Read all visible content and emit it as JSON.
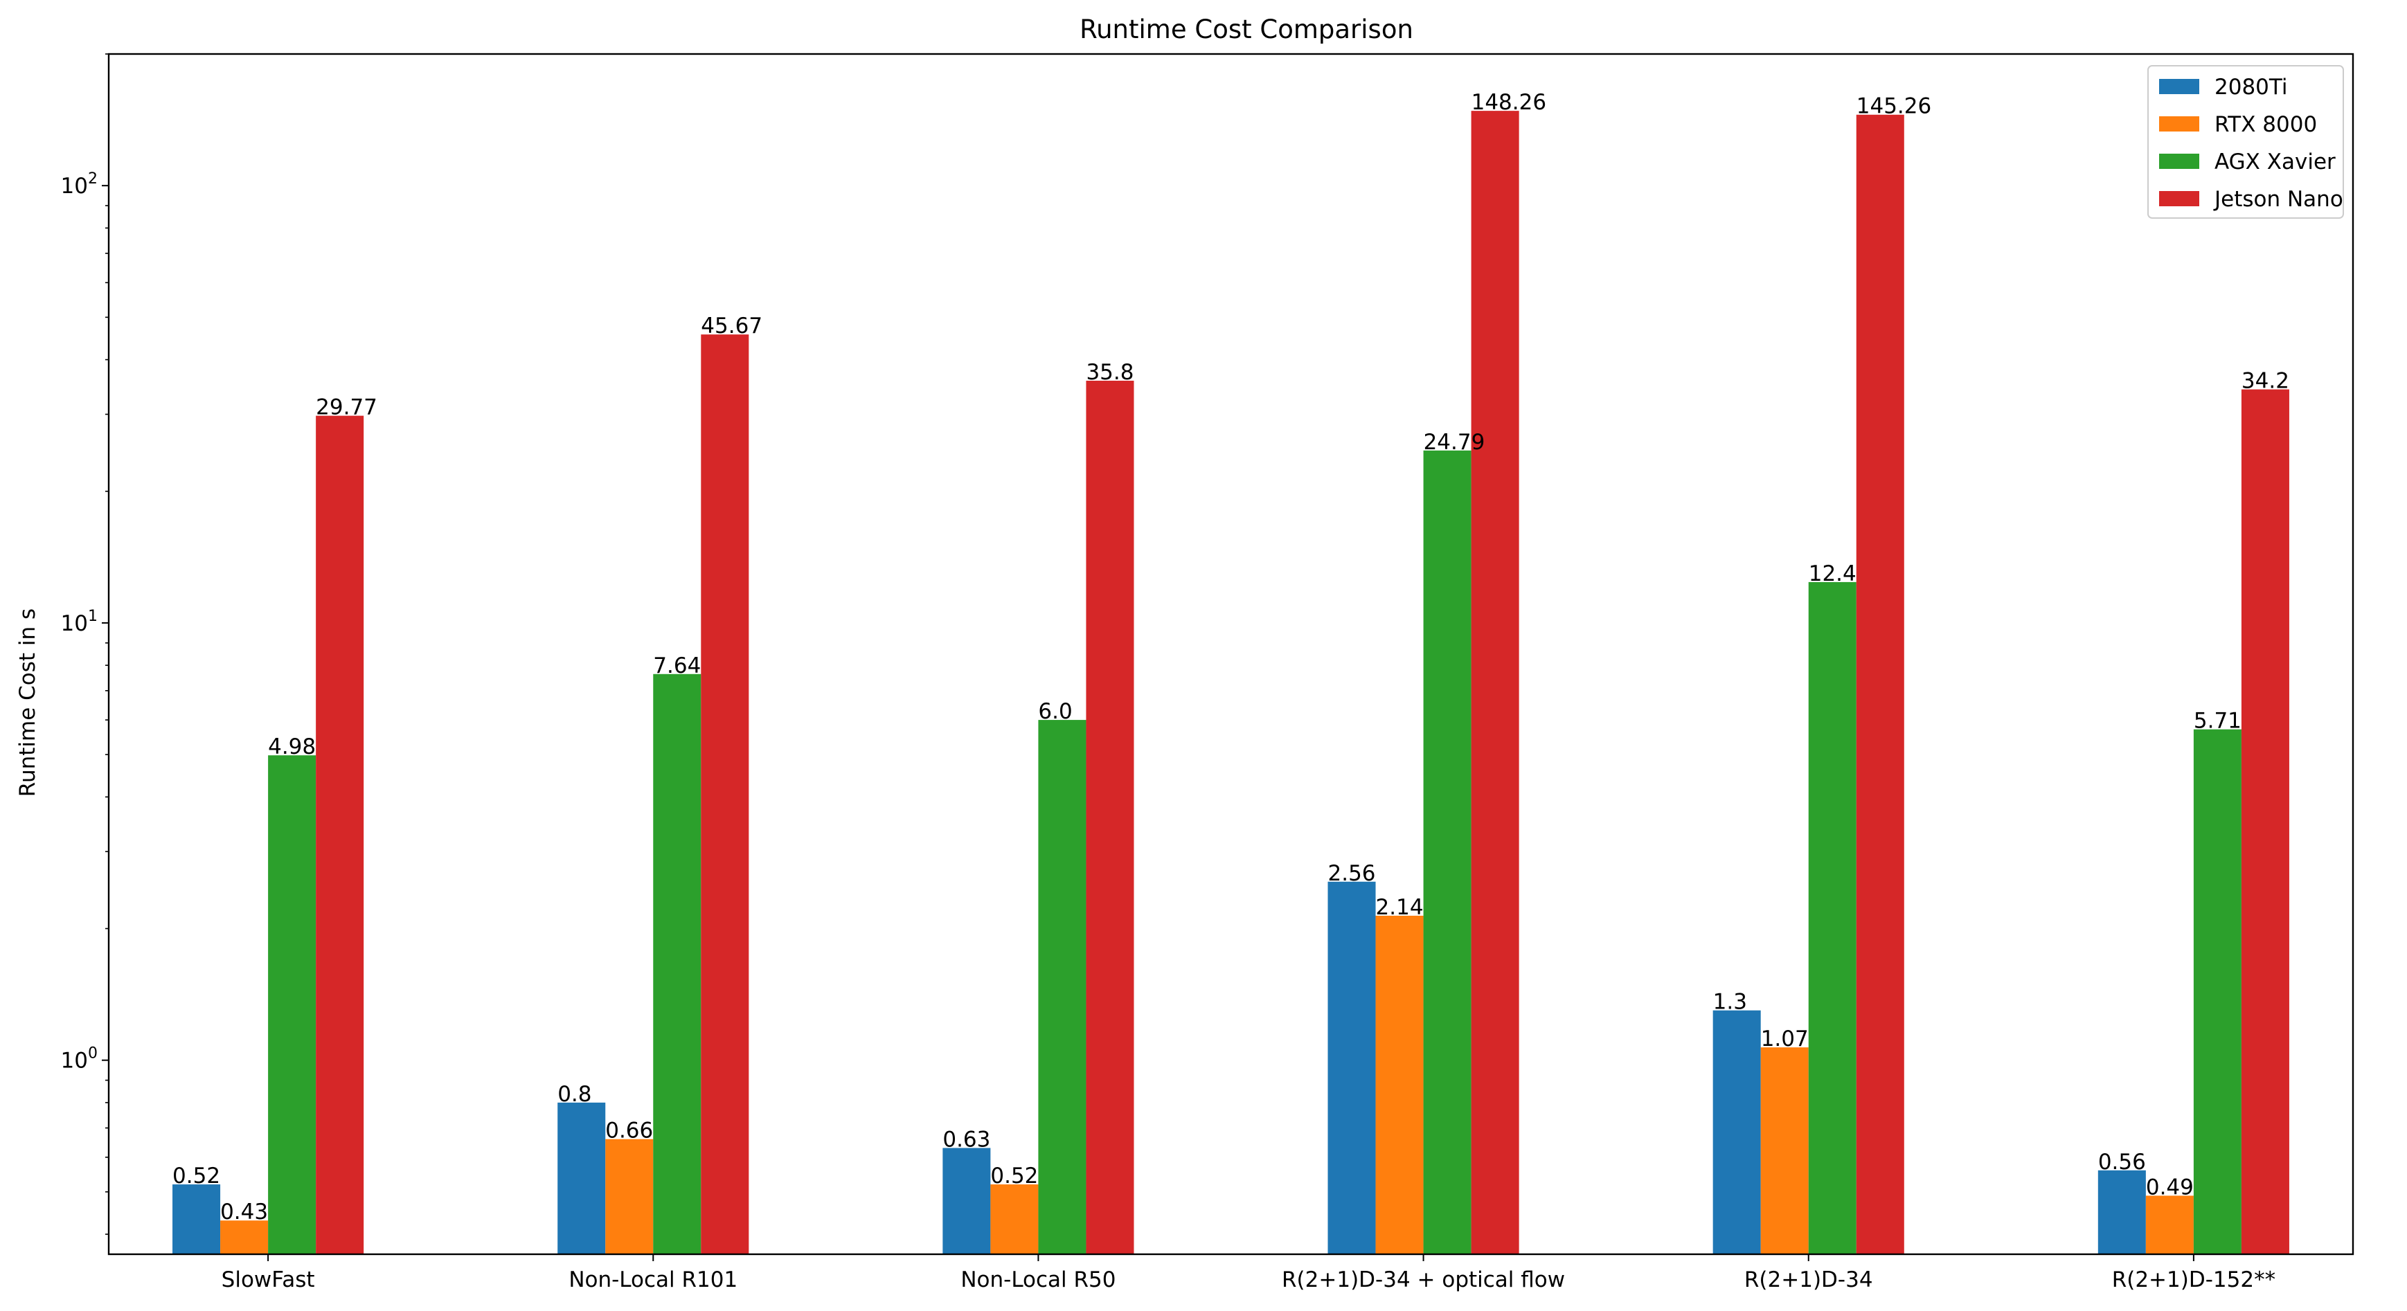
{
  "chart_data": {
    "type": "bar",
    "title": "Runtime Cost Comparison",
    "xlabel": "",
    "ylabel": "Runtime Cost in s",
    "yscale": "log",
    "ylim": [
      0.36,
      200
    ],
    "yticks": [
      {
        "value": 1,
        "base": "10",
        "exp": "0"
      },
      {
        "value": 10,
        "base": "10",
        "exp": "1"
      },
      {
        "value": 100,
        "base": "10",
        "exp": "2"
      }
    ],
    "grid": false,
    "legend_position": "top-right",
    "categories": [
      "SlowFast",
      "Non-Local R101",
      "Non-Local R50",
      "R(2+1)D-34 + optical flow",
      "R(2+1)D-34",
      "R(2+1)D-152**"
    ],
    "series": [
      {
        "name": "2080Ti",
        "color": "#1f77b4",
        "values": [
          0.52,
          0.8,
          0.63,
          2.56,
          1.3,
          0.56
        ],
        "labels": [
          "0.52",
          "0.8",
          "0.63",
          "2.56",
          "1.3",
          "0.56"
        ]
      },
      {
        "name": "RTX 8000",
        "color": "#ff7f0e",
        "values": [
          0.43,
          0.66,
          0.52,
          2.14,
          1.07,
          0.49
        ],
        "labels": [
          "0.43",
          "0.66",
          "0.52",
          "2.14",
          "1.07",
          "0.49"
        ]
      },
      {
        "name": "AGX Xavier",
        "color": "#2ca02c",
        "values": [
          4.98,
          7.64,
          6.0,
          24.79,
          12.4,
          5.71
        ],
        "labels": [
          "4.98",
          "7.64",
          "6.0",
          "24.79",
          "12.4",
          "5.71"
        ]
      },
      {
        "name": "Jetson Nano",
        "color": "#d62728",
        "values": [
          29.77,
          45.67,
          35.8,
          148.26,
          145.26,
          34.2
        ],
        "labels": [
          "29.77",
          "45.67",
          "35.8",
          "148.26",
          "145.26",
          "34.2"
        ]
      }
    ]
  }
}
